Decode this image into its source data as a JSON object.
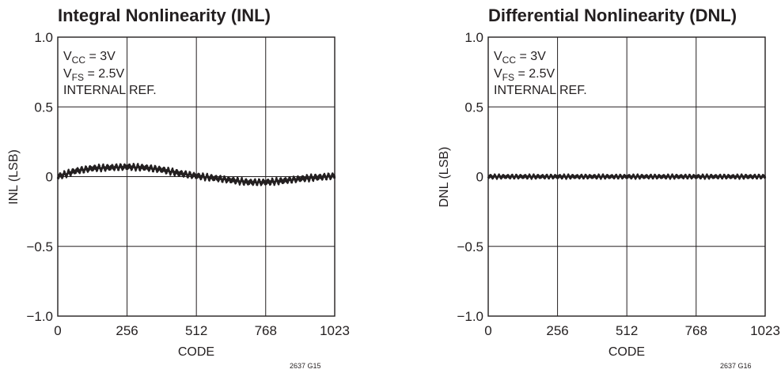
{
  "chart_data": [
    {
      "type": "line",
      "title": "Integral Nonlinearity (INL)",
      "xlabel": "CODE",
      "ylabel": "INL (LSB)",
      "xlim": [
        0,
        1023
      ],
      "ylim": [
        -1.0,
        1.0
      ],
      "x_ticks": [
        "0",
        "256",
        "512",
        "768",
        "1023"
      ],
      "y_ticks": [
        "1.0",
        "0.5",
        "0",
        "−0.5",
        "−1.0"
      ],
      "grid": true,
      "conditions": {
        "line1": {
          "base": "V",
          "sub": "CC",
          "rest": " = 3V"
        },
        "line2": {
          "base": "V",
          "sub": "FS",
          "rest": " = 2.5V"
        },
        "line3": "INTERNAL REF."
      },
      "figure_id": "2637 G15",
      "series": [
        {
          "x": [
            0,
            64,
            128,
            192,
            256,
            320,
            384,
            448,
            512,
            576,
            640,
            704,
            768,
            832,
            896,
            960,
            1023
          ],
          "y": [
            0.0,
            0.04,
            0.06,
            0.065,
            0.07,
            0.065,
            0.05,
            0.025,
            0.005,
            -0.01,
            -0.025,
            -0.04,
            -0.04,
            -0.03,
            -0.015,
            -0.005,
            0.005
          ],
          "ripple_amplitude": 0.03,
          "ripple_period_codes": 16
        }
      ]
    },
    {
      "type": "line",
      "title": "Differential Nonlinearity (DNL)",
      "xlabel": "CODE",
      "ylabel": "DNL (LSB)",
      "xlim": [
        0,
        1023
      ],
      "ylim": [
        -1.0,
        1.0
      ],
      "x_ticks": [
        "0",
        "256",
        "512",
        "768",
        "1023"
      ],
      "y_ticks": [
        "1.0",
        "0.5",
        "0",
        "−0.5",
        "−1.0"
      ],
      "grid": true,
      "conditions": {
        "line1": {
          "base": "V",
          "sub": "CC",
          "rest": " = 3V"
        },
        "line2": {
          "base": "V",
          "sub": "FS",
          "rest": " = 2.5V"
        },
        "line3": "INTERNAL REF."
      },
      "figure_id": "2637 G16",
      "series": [
        {
          "x": [
            0,
            256,
            512,
            768,
            1023
          ],
          "y": [
            0.0,
            0.0,
            0.0,
            0.0,
            0.0
          ],
          "ripple_amplitude": 0.02,
          "ripple_period_codes": 16
        }
      ]
    }
  ]
}
